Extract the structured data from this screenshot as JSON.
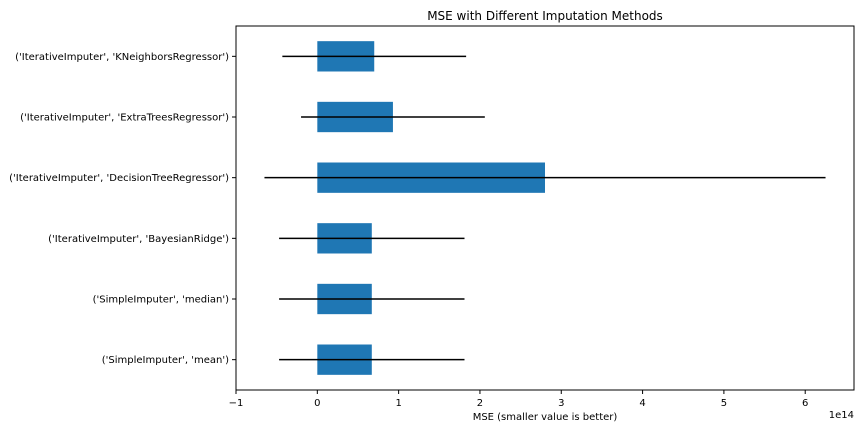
{
  "chart_data": {
    "type": "bar",
    "orientation": "horizontal",
    "title": "MSE with Different Imputation Methods",
    "xlabel": "MSE (smaller value is better)",
    "ylabel": "",
    "x_offset_label": "1e14",
    "x_scale_factor": 100000000000000.0,
    "xlim": [
      -1.0,
      6.6
    ],
    "x_ticks": [
      -1,
      0,
      1,
      2,
      3,
      4,
      5,
      6
    ],
    "x_tick_labels": [
      "−1",
      "0",
      "1",
      "2",
      "3",
      "4",
      "5",
      "6"
    ],
    "categories": [
      "('SimpleImputer', 'mean')",
      "('SimpleImputer', 'median')",
      "('IterativeImputer', 'BayesianRidge')",
      "('IterativeImputer', 'DecisionTreeRegressor')",
      "('IterativeImputer', 'ExtraTreesRegressor')",
      "('IterativeImputer', 'KNeighborsRegressor')"
    ],
    "values": [
      0.67,
      0.67,
      0.67,
      2.8,
      0.93,
      0.7
    ],
    "error": [
      1.14,
      1.14,
      1.14,
      3.45,
      1.13,
      1.13
    ],
    "bar_color": "#1f77b4",
    "error_color": "#000000",
    "grid": false,
    "legend": "none"
  }
}
